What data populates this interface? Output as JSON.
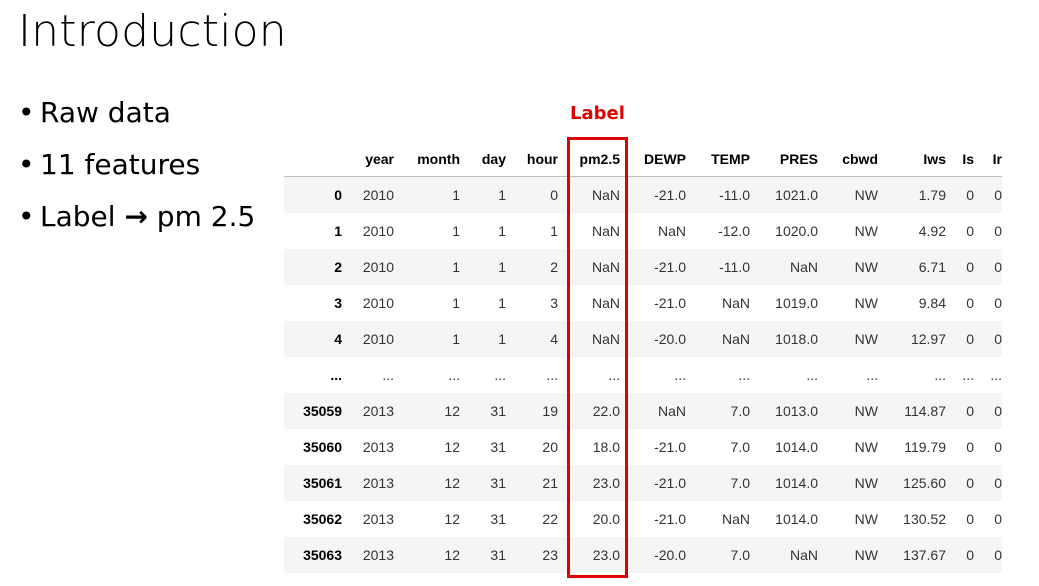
{
  "title": "Introduction",
  "bullets": {
    "raw": "Raw data",
    "features": "11 features",
    "label_prefix": "Label ",
    "arrow": "→",
    "label_suffix": " pm 2.5"
  },
  "annotation": {
    "label": "Label",
    "color": "#e00000"
  },
  "table": {
    "columns": [
      "",
      "year",
      "month",
      "day",
      "hour",
      "pm2.5",
      "DEWP",
      "TEMP",
      "PRES",
      "cbwd",
      "Iws",
      "Is",
      "Ir"
    ],
    "rows": [
      [
        "0",
        "2010",
        "1",
        "1",
        "0",
        "NaN",
        "-21.0",
        "-11.0",
        "1021.0",
        "NW",
        "1.79",
        "0",
        "0"
      ],
      [
        "1",
        "2010",
        "1",
        "1",
        "1",
        "NaN",
        "NaN",
        "-12.0",
        "1020.0",
        "NW",
        "4.92",
        "0",
        "0"
      ],
      [
        "2",
        "2010",
        "1",
        "1",
        "2",
        "NaN",
        "-21.0",
        "-11.0",
        "NaN",
        "NW",
        "6.71",
        "0",
        "0"
      ],
      [
        "3",
        "2010",
        "1",
        "1",
        "3",
        "NaN",
        "-21.0",
        "NaN",
        "1019.0",
        "NW",
        "9.84",
        "0",
        "0"
      ],
      [
        "4",
        "2010",
        "1",
        "1",
        "4",
        "NaN",
        "-20.0",
        "NaN",
        "1018.0",
        "NW",
        "12.97",
        "0",
        "0"
      ],
      [
        "...",
        "...",
        "...",
        "...",
        "...",
        "...",
        "...",
        "...",
        "...",
        "...",
        "...",
        "...",
        "..."
      ],
      [
        "35059",
        "2013",
        "12",
        "31",
        "19",
        "22.0",
        "NaN",
        "7.0",
        "1013.0",
        "NW",
        "114.87",
        "0",
        "0"
      ],
      [
        "35060",
        "2013",
        "12",
        "31",
        "20",
        "18.0",
        "-21.0",
        "7.0",
        "1014.0",
        "NW",
        "119.79",
        "0",
        "0"
      ],
      [
        "35061",
        "2013",
        "12",
        "31",
        "21",
        "23.0",
        "-21.0",
        "7.0",
        "1014.0",
        "NW",
        "125.60",
        "0",
        "0"
      ],
      [
        "35062",
        "2013",
        "12",
        "31",
        "22",
        "20.0",
        "-21.0",
        "NaN",
        "1014.0",
        "NW",
        "130.52",
        "0",
        "0"
      ],
      [
        "35063",
        "2013",
        "12",
        "31",
        "23",
        "23.0",
        "-20.0",
        "7.0",
        "NaN",
        "NW",
        "137.67",
        "0",
        "0"
      ]
    ]
  }
}
